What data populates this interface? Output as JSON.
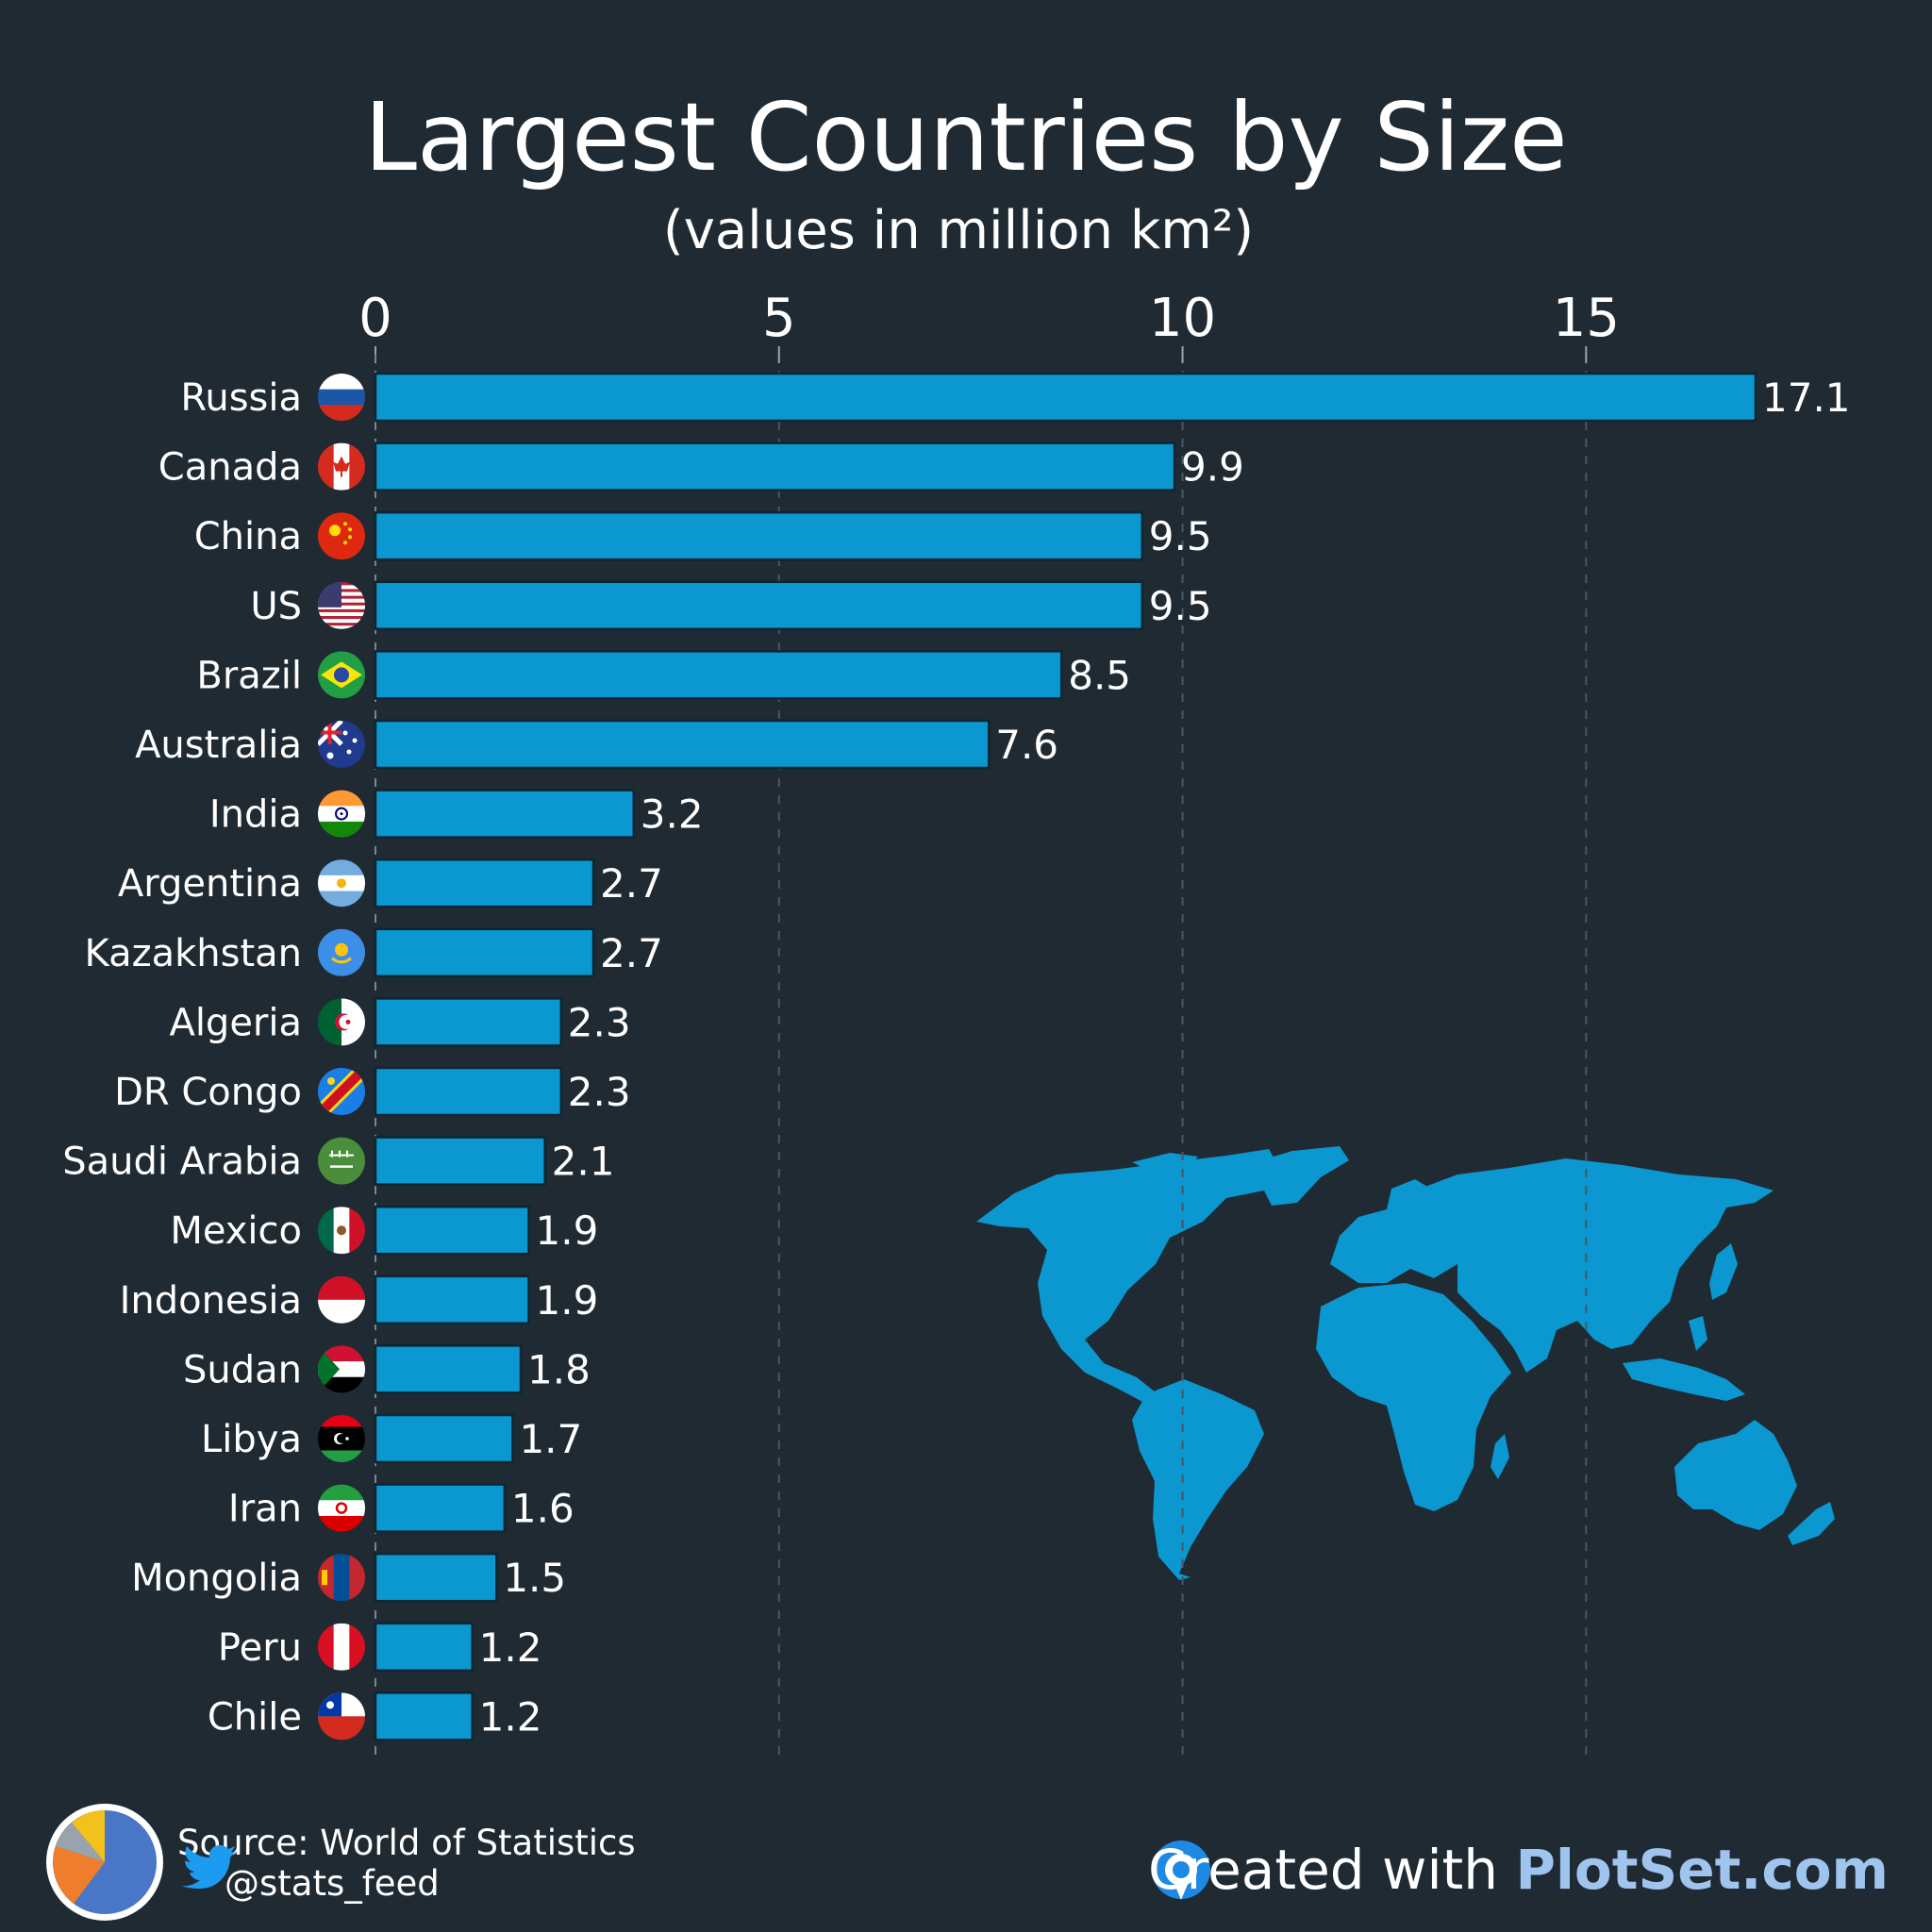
{
  "chart_data": {
    "type": "bar",
    "orientation": "horizontal",
    "title": "Largest Countries by Size",
    "subtitle": "(values in million km²)",
    "categories": [
      "Russia",
      "Canada",
      "China",
      "US",
      "Brazil",
      "Australia",
      "India",
      "Argentina",
      "Kazakhstan",
      "Algeria",
      "DR Congo",
      "Saudi Arabia",
      "Mexico",
      "Indonesia",
      "Sudan",
      "Libya",
      "Iran",
      "Mongolia",
      "Peru",
      "Chile"
    ],
    "values": [
      17.1,
      9.9,
      9.5,
      9.5,
      8.5,
      7.6,
      3.2,
      2.7,
      2.7,
      2.3,
      2.3,
      2.1,
      1.9,
      1.9,
      1.8,
      1.7,
      1.6,
      1.5,
      1.2,
      1.2
    ],
    "value_labels": [
      "17.1",
      "9.9",
      "9.5",
      "9.5",
      "8.5",
      "7.6",
      "3.2",
      "2.7",
      "2.7",
      "2.3",
      "2.3",
      "2.1",
      "1.9",
      "1.9",
      "1.8",
      "1.7",
      "1.6",
      "1.5",
      "1.2",
      "1.2"
    ],
    "xlim": [
      0,
      17.1
    ],
    "xticks": [
      0,
      5,
      10,
      15
    ],
    "xaxis_position": "top",
    "grid": true,
    "bar_color": "#0b97cf",
    "bar_stroke": "#0d2633"
  },
  "colors": {
    "background": "#1f2a33",
    "bar": "#0b97cf",
    "map": "#0b97cf",
    "grid": "#4a5661",
    "brand_text": "#9fc4ee"
  },
  "flags": [
    "russia-flag-icon",
    "canada-flag-icon",
    "china-flag-icon",
    "us-flag-icon",
    "brazil-flag-icon",
    "australia-flag-icon",
    "india-flag-icon",
    "argentina-flag-icon",
    "kazakhstan-flag-icon",
    "algeria-flag-icon",
    "drcongo-flag-icon",
    "saudiarabia-flag-icon",
    "mexico-flag-icon",
    "indonesia-flag-icon",
    "sudan-flag-icon",
    "libya-flag-icon",
    "iran-flag-icon",
    "mongolia-flag-icon",
    "peru-flag-icon",
    "chile-flag-icon"
  ],
  "decorations": {
    "map": "world-map-silhouette",
    "logo": "pie-chart-logo-icon",
    "social": "twitter-bird-icon",
    "brand_icon": "plotset-logo-icon"
  },
  "footer": {
    "source": "Source: World of Statistics",
    "handle": "@stats_feed",
    "credit_prefix": "Created with ",
    "credit_brand": "PlotSet.com"
  }
}
